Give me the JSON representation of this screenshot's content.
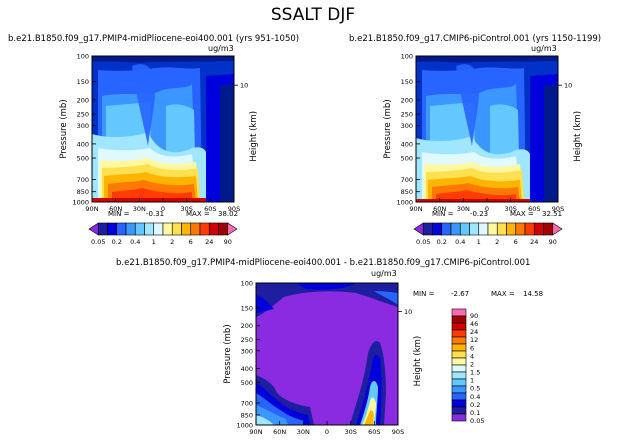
{
  "figure": {
    "title": "SSALT DJF",
    "unit_label": "ug/m3",
    "y_axis_label": "Pressure (mb)",
    "y2_axis_label": "Height (km)",
    "y_ticks": [
      "100",
      "150",
      "200",
      "250",
      "300",
      "400",
      "500",
      "700",
      "850",
      "1000"
    ],
    "x_ticks": [
      "90N",
      "60N",
      "30N",
      "0",
      "30S",
      "60S",
      "90S"
    ],
    "height_tick": "10"
  },
  "chart_data": [
    {
      "type": "heatmap",
      "title": "b.e21.B1850.f09_g17.PMIP4-midPliocene-eoi400.001 (yrs 951-1050)",
      "units": "ug/m3",
      "xlabel": "",
      "ylabel": "Pressure (mb)",
      "y2label": "Height (km)",
      "x_ticks": [
        "90N",
        "60N",
        "30N",
        "0",
        "30S",
        "60S",
        "90S"
      ],
      "y_ticks": [
        "100",
        "150",
        "200",
        "250",
        "300",
        "400",
        "500",
        "700",
        "850",
        "1000"
      ],
      "min_text": "MIN =",
      "min_value": "-0.31",
      "max_text": "MAX =",
      "max_value": "38.02",
      "levels": [
        "0.05",
        "0.1",
        "0.2",
        "0.4",
        "1",
        "1.5",
        "2",
        "4",
        "6",
        "12",
        "24",
        "46",
        "90"
      ]
    },
    {
      "type": "heatmap",
      "title": "b.e21.B1850.f09_g17.CMIP6-piControl.001 (yrs 1150-1199)",
      "units": "ug/m3",
      "xlabel": "",
      "ylabel": "Pressure (mb)",
      "y2label": "Height (km)",
      "x_ticks": [
        "90N",
        "60N",
        "30N",
        "0",
        "30S",
        "60S",
        "90S"
      ],
      "y_ticks": [
        "100",
        "150",
        "200",
        "250",
        "300",
        "400",
        "500",
        "700",
        "850",
        "1000"
      ],
      "min_text": "MIN =",
      "min_value": "-0.23",
      "max_text": "MAX =",
      "max_value": "32.51",
      "levels": [
        "0.05",
        "0.1",
        "0.2",
        "0.4",
        "1",
        "1.5",
        "2",
        "4",
        "6",
        "12",
        "24",
        "46",
        "90"
      ]
    },
    {
      "type": "heatmap",
      "title": "b.e21.B1850.f09_g17.PMIP4-midPliocene-eoi400.001 - b.e21.B1850.f09_g17.CMIP6-piControl.001",
      "units": "ug/m3",
      "xlabel": "",
      "ylabel": "Pressure (mb)",
      "y2label": "Height (km)",
      "x_ticks": [
        "90N",
        "60N",
        "30N",
        "0",
        "30S",
        "60S",
        "90S"
      ],
      "y_ticks": [
        "100",
        "150",
        "200",
        "250",
        "300",
        "400",
        "500",
        "700",
        "850",
        "1000"
      ],
      "min_text": "MIN =",
      "min_value": "-2.67",
      "max_text": "MAX =",
      "max_value": "14.58",
      "levels": [
        "0.05",
        "0.1",
        "0.2",
        "0.4",
        "1",
        "1.5",
        "2",
        "4",
        "6",
        "12",
        "24",
        "46",
        "90"
      ]
    }
  ],
  "colorbar": {
    "horizontal_labels": [
      "0.05",
      "0.2",
      "0.4",
      "1",
      "2",
      "6",
      "24",
      "90"
    ],
    "vertical_labels": [
      "90",
      "46",
      "24",
      "12",
      "6",
      "4",
      "2",
      "1.5",
      "1",
      "0.5",
      "0.4",
      "0.2",
      "0.1",
      "0.05"
    ],
    "colors": [
      "#8a2be2",
      "#1e1ea0",
      "#0000dc",
      "#2864ff",
      "#3c96ff",
      "#64c8ff",
      "#a0e6ff",
      "#e0f8ff",
      "#fff8a0",
      "#ffe050",
      "#ffb400",
      "#ff7800",
      "#ff3c00",
      "#d20000",
      "#a00000",
      "#ff69b4"
    ]
  }
}
